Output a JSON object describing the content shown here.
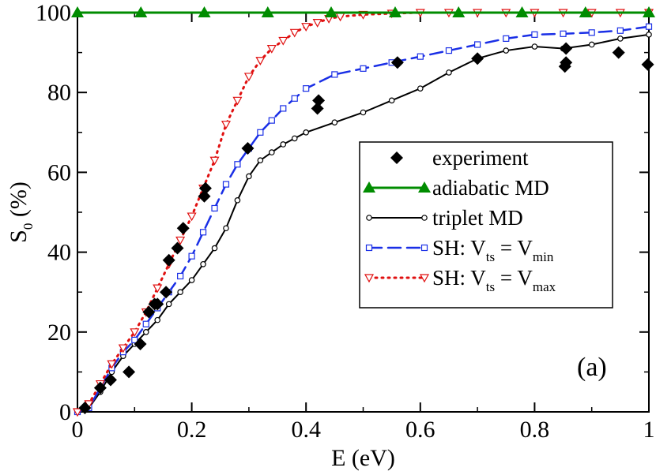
{
  "chart_data": {
    "type": "line",
    "xlabel": "E (eV)",
    "ylabel": {
      "main": "S",
      "sub": "0",
      "rest": " (%)"
    },
    "panel_label": "(a)",
    "xlim": [
      0,
      1
    ],
    "ylim": [
      0,
      100
    ],
    "xticks": [
      {
        "value": 0,
        "label": "0"
      },
      {
        "value": 0.2,
        "label": "0.2"
      },
      {
        "value": 0.4,
        "label": "0.4"
      },
      {
        "value": 0.6,
        "label": "0.6"
      },
      {
        "value": 0.8,
        "label": "0.8"
      },
      {
        "value": 1,
        "label": "1"
      }
    ],
    "yticks": [
      {
        "value": 0,
        "label": "0"
      },
      {
        "value": 20,
        "label": "20"
      },
      {
        "value": 40,
        "label": "40"
      },
      {
        "value": 60,
        "label": "60"
      },
      {
        "value": 80,
        "label": "80"
      },
      {
        "value": 100,
        "label": "100"
      }
    ],
    "legend_position": "right",
    "series": [
      {
        "name": "experiment",
        "style": "diamond-points",
        "color": "#000000",
        "x": [
          0.013,
          0.04,
          0.058,
          0.09,
          0.11,
          0.125,
          0.135,
          0.14,
          0.155,
          0.16,
          0.175,
          0.185,
          0.222,
          0.224,
          0.298,
          0.42,
          0.422,
          0.56,
          0.7,
          0.853,
          0.855,
          0.855,
          0.947,
          0.998
        ],
        "y": [
          1,
          6,
          8,
          10,
          17,
          25,
          27,
          27,
          30,
          38,
          41,
          46,
          54,
          56,
          66,
          76,
          78,
          87.5,
          88.5,
          86.5,
          87.5,
          91,
          90,
          87
        ]
      },
      {
        "name": "adiabatic MD",
        "style": "triangle-solid",
        "color": "#008c00",
        "x": [
          0,
          0.111,
          0.222,
          0.333,
          0.444,
          0.556,
          0.667,
          0.778,
          0.889,
          1
        ],
        "y": [
          100,
          100,
          100,
          100,
          100,
          100,
          100,
          100,
          100,
          100
        ]
      },
      {
        "name": "triplet MD",
        "style": "circle-solid",
        "color": "#000000",
        "x": [
          0,
          0.02,
          0.04,
          0.06,
          0.08,
          0.1,
          0.12,
          0.14,
          0.16,
          0.18,
          0.2,
          0.22,
          0.24,
          0.26,
          0.28,
          0.3,
          0.32,
          0.34,
          0.36,
          0.38,
          0.4,
          0.45,
          0.5,
          0.55,
          0.6,
          0.65,
          0.7,
          0.75,
          0.8,
          0.85,
          0.9,
          0.95,
          1
        ],
        "y": [
          0,
          1,
          5,
          10,
          14,
          17,
          20,
          23,
          27,
          30,
          33,
          37,
          41,
          46,
          53,
          59,
          63,
          65,
          67,
          68.5,
          70,
          72.5,
          75,
          78,
          81,
          85,
          88.5,
          90.5,
          91.5,
          91,
          92,
          93.5,
          94.5
        ]
      },
      {
        "name": "SH: V_ts = V_min",
        "legend_parts": {
          "a": "SH: V",
          "sub1": "ts",
          "b": " = V",
          "sub2": "min"
        },
        "style": "square-dashed",
        "color": "#1a2fe6",
        "x": [
          0,
          0.02,
          0.04,
          0.06,
          0.08,
          0.1,
          0.12,
          0.14,
          0.16,
          0.18,
          0.2,
          0.22,
          0.24,
          0.26,
          0.28,
          0.3,
          0.32,
          0.34,
          0.36,
          0.38,
          0.4,
          0.45,
          0.5,
          0.55,
          0.6,
          0.65,
          0.7,
          0.75,
          0.8,
          0.85,
          0.9,
          0.95,
          1
        ],
        "y": [
          0,
          1,
          6,
          11,
          15,
          18,
          22,
          26,
          30,
          34,
          39,
          45,
          51,
          57,
          62,
          66,
          70,
          73,
          76,
          78.5,
          81,
          84.5,
          86,
          87.5,
          89,
          90.5,
          92,
          93.5,
          94.5,
          94.7,
          95,
          95.5,
          96.5
        ]
      },
      {
        "name": "SH: V_ts = V_max",
        "legend_parts": {
          "a": "SH: V",
          "sub1": "ts",
          "b": " = V",
          "sub2": "max"
        },
        "style": "triangle-down-dotted",
        "color": "#e01010",
        "x": [
          0,
          0.02,
          0.04,
          0.06,
          0.08,
          0.1,
          0.12,
          0.14,
          0.16,
          0.18,
          0.2,
          0.22,
          0.24,
          0.26,
          0.28,
          0.3,
          0.32,
          0.34,
          0.36,
          0.38,
          0.4,
          0.42,
          0.44,
          0.46,
          0.5,
          0.55,
          0.6,
          0.65,
          0.7,
          0.75,
          0.8,
          0.85,
          0.9,
          0.95,
          1
        ],
        "y": [
          0,
          2,
          7,
          12,
          16,
          20,
          25,
          31,
          37,
          43,
          49,
          56,
          63,
          72,
          78,
          84,
          88,
          91,
          93,
          95,
          96.5,
          97.5,
          98.5,
          99,
          99.5,
          99.8,
          100,
          100,
          100,
          100,
          100,
          100,
          100,
          100,
          100
        ]
      }
    ]
  }
}
